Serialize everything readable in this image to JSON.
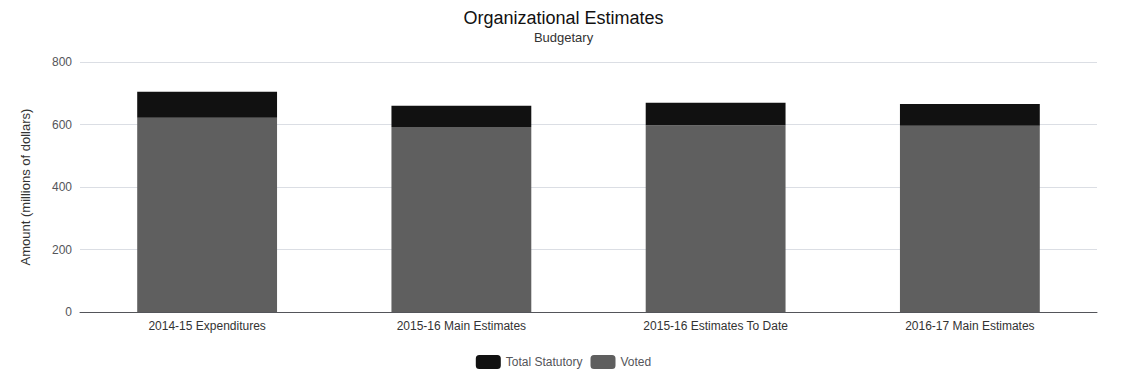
{
  "chart_data": {
    "type": "bar",
    "title": "Organizational Estimates",
    "subtitle": "Budgetary",
    "categories": [
      "2014-15 Expenditures",
      "2015-16 Main Estimates",
      "2015-16 Estimates To Date",
      "2016-17 Main Estimates"
    ],
    "series": [
      {
        "name": "Voted",
        "color": "#5f5f5f",
        "values": [
          622,
          592,
          598,
          596
        ]
      },
      {
        "name": "Total Statutory",
        "color": "#111111",
        "values": [
          83,
          68,
          72,
          70
        ]
      }
    ],
    "ylabel": "Amount (millions of dollars)",
    "ylim": [
      0,
      800
    ],
    "yticks": [
      0,
      200,
      400,
      600,
      800
    ],
    "grid": true,
    "stacked": true,
    "legend": "bottom"
  }
}
